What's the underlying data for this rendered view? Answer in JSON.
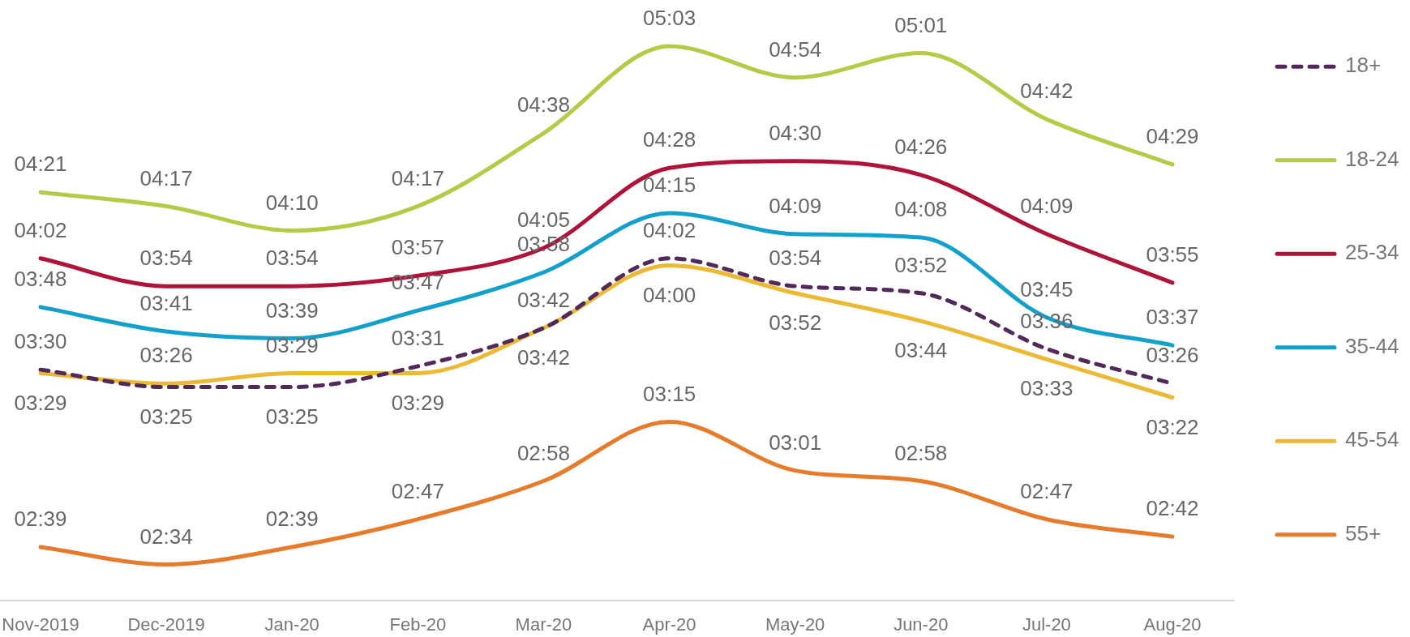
{
  "chart_data": {
    "type": "line",
    "categories": [
      "Nov-2019",
      "Dec-2019",
      "Jan-20",
      "Feb-20",
      "Mar-20",
      "Apr-20",
      "May-20",
      "Jun-20",
      "Jul-20",
      "Aug-20"
    ],
    "tick_labels": "x",
    "grid": false,
    "legend": "right",
    "marker": "none",
    "series": [
      {
        "name": "18+",
        "color": "#512a5a",
        "line_style": "dashed",
        "values": [
          210,
          205,
          205,
          211,
          222,
          242,
          234,
          232,
          216,
          206
        ],
        "value_labels": [
          "03:30",
          "03:25",
          "03:25",
          "03:31",
          "03:42",
          "04:02",
          "03:54",
          "03:52",
          "03:36",
          "03:26"
        ]
      },
      {
        "name": "18-24",
        "color": "#b3cb47",
        "values": [
          261,
          257,
          250,
          257,
          278,
          303,
          294,
          301,
          282,
          269
        ],
        "value_labels": [
          "04:21",
          "04:17",
          "04:10",
          "04:17",
          "04:38",
          "05:03",
          "04:54",
          "05:01",
          "04:42",
          "04:29"
        ]
      },
      {
        "name": "25-34",
        "color": "#ae1439",
        "values": [
          242,
          234,
          234,
          237,
          245,
          268,
          270,
          266,
          249,
          235
        ],
        "value_labels": [
          "04:02",
          "03:54",
          "03:54",
          "03:57",
          "04:05",
          "04:28",
          "04:30",
          "04:26",
          "04:09",
          "03:55"
        ]
      },
      {
        "name": "35-44",
        "color": "#13a1cb",
        "values": [
          228,
          221,
          219,
          227,
          238,
          255,
          249,
          248,
          225,
          217
        ],
        "value_labels": [
          "03:48",
          "03:41",
          "03:39",
          "03:47",
          "03:58",
          "04:15",
          "04:09",
          "04:08",
          "03:45",
          "03:37"
        ]
      },
      {
        "name": "45-54",
        "color": "#ecb935",
        "values": [
          209,
          206,
          209,
          209,
          222,
          240,
          232,
          224,
          213,
          202
        ],
        "value_labels": [
          "03:29",
          "03:26",
          "03:29",
          "03:29",
          "03:42",
          "04:00",
          "03:52",
          "03:44",
          "03:33",
          "03:22"
        ]
      },
      {
        "name": "55+",
        "color": "#e57b2b",
        "values": [
          159,
          154,
          159,
          167,
          178,
          195,
          181,
          178,
          167,
          162
        ],
        "value_labels": [
          "02:39",
          "02:34",
          "02:39",
          "02:47",
          "02:58",
          "03:15",
          "03:01",
          "02:58",
          "02:47",
          "02:42"
        ]
      }
    ]
  }
}
